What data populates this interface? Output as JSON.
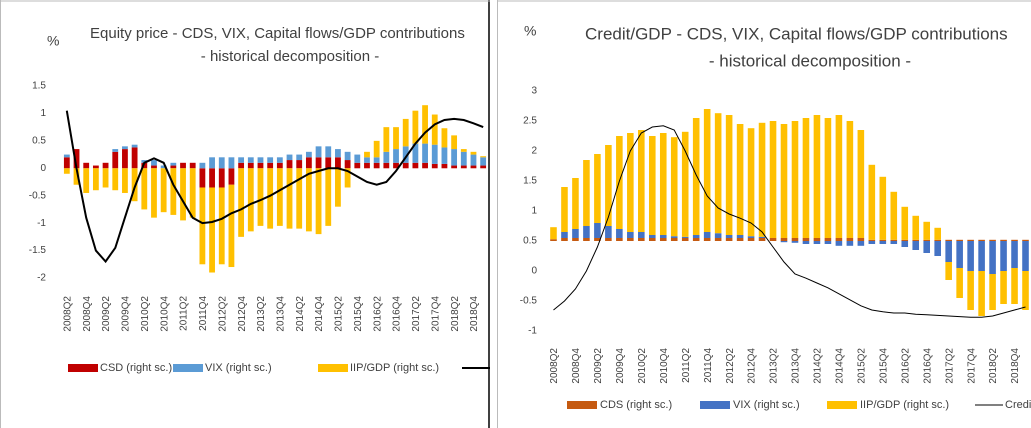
{
  "chart_data": [
    {
      "type": "bar",
      "title": "Equity price - CDS, VIX, Capital flows/GDP contributions",
      "subtitle": "- historical decomposition -",
      "y_label": "%",
      "categories": [
        "2008Q2",
        null,
        "2008Q4",
        null,
        "2009Q2",
        null,
        "2009Q4",
        null,
        "2010Q2",
        null,
        "2010Q4",
        null,
        "2011Q2",
        null,
        "2011Q4",
        null,
        "2012Q2",
        null,
        "2012Q4",
        null,
        "2013Q2",
        null,
        "2013Q4",
        null,
        "2014Q2",
        null,
        "2014Q4",
        null,
        "2015Q2",
        null,
        "2015Q4",
        null,
        "2016Q2",
        null,
        "2016Q4",
        null,
        "2017Q2",
        null,
        "2017Q4",
        null,
        "2018Q2",
        null,
        "2018Q4",
        null
      ],
      "ylim": [
        -2,
        1.5
      ],
      "yticks": [
        1.5,
        1,
        0.5,
        0,
        -0.5,
        -1,
        -1.5,
        -2
      ],
      "series": [
        {
          "name": "CSD (right sc.)",
          "color": "#c00000",
          "values": [
            0.2,
            0.35,
            0.1,
            0.05,
            0.1,
            0.3,
            0.35,
            0.38,
            0.1,
            0.05,
            0,
            0.05,
            0.1,
            0.1,
            -0.35,
            -0.35,
            -0.35,
            -0.3,
            0.1,
            0.1,
            0.1,
            0.1,
            0.1,
            0.15,
            0.15,
            0.2,
            0.2,
            0.2,
            0.2,
            0.15,
            0.1,
            0.1,
            0.1,
            0.1,
            0.1,
            0.1,
            0.1,
            0.1,
            0.08,
            0.08,
            0.05,
            0.05,
            0.05,
            0.05
          ]
        },
        {
          "name": "VIX (right sc.)",
          "color": "#5b9bd5",
          "values": [
            0.05,
            0,
            0,
            0,
            0,
            0.05,
            0.05,
            0.05,
            0.05,
            0.1,
            0.05,
            0.05,
            0,
            0,
            0.1,
            0.2,
            0.2,
            0.2,
            0.1,
            0.1,
            0.1,
            0.1,
            0.1,
            0.1,
            0.1,
            0.1,
            0.2,
            0.2,
            0.15,
            0.15,
            0.15,
            0.1,
            0.1,
            0.2,
            0.25,
            0.3,
            0.35,
            0.35,
            0.35,
            0.3,
            0.3,
            0.25,
            0.2,
            0.15
          ]
        },
        {
          "name": "IIP/GDP (right sc.)",
          "color": "#ffc000",
          "values": [
            -0.1,
            -0.3,
            -0.45,
            -0.4,
            -0.35,
            -0.4,
            -0.45,
            -0.6,
            -0.75,
            -0.9,
            -0.8,
            -0.85,
            -0.95,
            -0.9,
            -1.4,
            -1.55,
            -1.4,
            -1.5,
            -1.25,
            -1.15,
            -1.05,
            -1.1,
            -1.05,
            -1.1,
            -1.1,
            -1.15,
            -1.2,
            -1.05,
            -0.7,
            -0.35,
            0,
            0.1,
            0.3,
            0.45,
            0.4,
            0.5,
            0.6,
            0.7,
            0.55,
            0.35,
            0.25,
            0.05,
            0.05,
            0.02
          ]
        },
        {
          "type": "line",
          "color": "#000000",
          "values": [
            1.05,
            0,
            -0.9,
            -1.5,
            -1.7,
            -1.45,
            -0.9,
            -0.35,
            0.1,
            0.18,
            0.1,
            -0.3,
            -0.6,
            -0.9,
            -1,
            -0.98,
            -0.92,
            -0.82,
            -0.75,
            -0.65,
            -0.58,
            -0.5,
            -0.4,
            -0.3,
            -0.2,
            -0.1,
            -0.05,
            0,
            0,
            -0.05,
            -0.15,
            -0.25,
            -0.3,
            -0.25,
            -0.05,
            0.2,
            0.45,
            0.65,
            0.8,
            0.88,
            0.9,
            0.88,
            0.82,
            0.75
          ]
        }
      ]
    },
    {
      "type": "bar",
      "title": "Credit/GDP - CDS, VIX, Capital flows/GDP contributions",
      "subtitle": "- historical decomposition -",
      "y_label": "%",
      "categories": [
        "2008Q2",
        null,
        "2008Q4",
        null,
        "2009Q2",
        null,
        "2009Q4",
        null,
        "2010Q2",
        null,
        "2010Q4",
        null,
        "2011Q2",
        null,
        "2011Q4",
        null,
        "2012Q2",
        null,
        "2012Q4",
        null,
        "2013Q2",
        null,
        "2013Q4",
        null,
        "2014Q2",
        null,
        "2014Q4",
        null,
        "2015Q2",
        null,
        "2015Q4",
        null,
        "2016Q2",
        null,
        "2016Q4",
        null,
        "2017Q2",
        null,
        "2017Q4",
        null,
        "2018Q2",
        null,
        "2018Q4",
        null
      ],
      "ylim": [
        -1,
        3
      ],
      "yticks": [
        3,
        2.5,
        2,
        1.5,
        1,
        0.5,
        0,
        -0.5,
        -1
      ],
      "y2lim": [
        -1.5,
        2.5
      ],
      "series": [
        {
          "name": "CDS (right sc.)",
          "color": "#c55a11",
          "axis": "y2",
          "values": [
            0.03,
            0.05,
            0.05,
            0.05,
            0.05,
            0.05,
            0.05,
            0.05,
            0.05,
            0.05,
            0.05,
            0.05,
            0.05,
            0.05,
            0.05,
            0.05,
            0.05,
            0.05,
            0.05,
            0.05,
            0.05,
            0.05,
            0.05,
            0.05,
            0.05,
            0.05,
            0.05,
            0.05,
            0.05,
            0.02,
            0.02,
            0.02,
            0.02,
            0.02,
            0.02,
            0.02,
            0.02,
            0.02,
            0.02,
            0.02,
            0.02,
            0.02,
            0.02,
            0.02
          ]
        },
        {
          "name": "VIX (right sc.)",
          "color": "#4472c4",
          "axis": "y2",
          "values": [
            0,
            0.1,
            0.15,
            0.2,
            0.25,
            0.2,
            0.15,
            0.1,
            0.1,
            0.05,
            0.05,
            0.03,
            0.02,
            0.05,
            0.1,
            0.08,
            0.05,
            0.05,
            0.03,
            0.02,
            0,
            -0.02,
            -0.03,
            -0.05,
            -0.05,
            -0.05,
            -0.08,
            -0.08,
            -0.08,
            -0.05,
            -0.05,
            -0.05,
            -0.1,
            -0.15,
            -0.2,
            -0.25,
            -0.35,
            -0.45,
            -0.5,
            -0.5,
            -0.55,
            -0.5,
            -0.45,
            -0.5
          ]
        },
        {
          "name": "IIP/GDP (right sc.)",
          "color": "#ffc000",
          "axis": "y2",
          "values": [
            0.2,
            0.75,
            0.85,
            1.1,
            1.15,
            1.35,
            1.55,
            1.65,
            1.7,
            1.65,
            1.7,
            1.65,
            1.75,
            1.95,
            2.05,
            2,
            2,
            1.85,
            1.8,
            1.9,
            1.95,
            1.9,
            1.95,
            2,
            2.05,
            2,
            2.05,
            1.95,
            1.8,
            1.25,
            1.05,
            0.8,
            0.55,
            0.4,
            0.3,
            0.2,
            -0.3,
            -0.5,
            -0.65,
            -0.75,
            -0.6,
            -0.55,
            -0.6,
            -0.65
          ]
        },
        {
          "name": "Credit/GDP",
          "type": "line",
          "color": "#000000",
          "values": [
            -0.65,
            -0.5,
            -0.3,
            0,
            0.4,
            0.9,
            1.5,
            2,
            2.3,
            2.4,
            2.42,
            2.35,
            2,
            1.6,
            1.25,
            1.05,
            0.95,
            0.88,
            0.8,
            0.65,
            0.4,
            0.15,
            -0.05,
            -0.12,
            -0.2,
            -0.28,
            -0.38,
            -0.48,
            -0.58,
            -0.65,
            -0.68,
            -0.7,
            -0.7,
            -0.72,
            -0.73,
            -0.74,
            -0.75,
            -0.76,
            -0.77,
            -0.77,
            -0.75,
            -0.7,
            -0.65,
            -0.6
          ]
        }
      ]
    }
  ]
}
